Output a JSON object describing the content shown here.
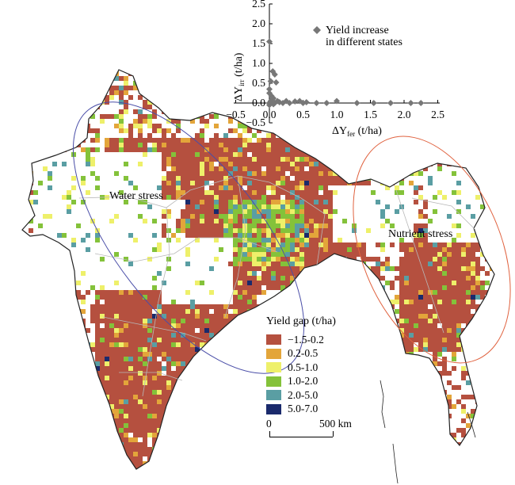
{
  "map": {
    "colors": {
      "gap_1": "#b5503f",
      "gap_2": "#e3a53a",
      "gap_3": "#eef06a",
      "gap_4": "#84c23a",
      "gap_5": "#5a9ea3",
      "gap_6": "#1a2a6c",
      "outline": "#222222",
      "state_lines": "#b8b8b8",
      "water_ellipse": "#4a4ea8",
      "nutrient_ellipse": "#e0623f"
    },
    "regions": {
      "water_stress": "Water stress",
      "nutrient_stress": "Nutrient stress"
    }
  },
  "legend": {
    "title": "Yield gap (t/ha)",
    "items": [
      {
        "label": "−1.5-0.2",
        "color": "#b5503f"
      },
      {
        "label": "0.2-0.5",
        "color": "#e3a53a"
      },
      {
        "label": "0.5-1.0",
        "color": "#eef06a"
      },
      {
        "label": "1.0-2.0",
        "color": "#84c23a"
      },
      {
        "label": "2.0-5.0",
        "color": "#5a9ea3"
      },
      {
        "label": "5.0-7.0",
        "color": "#1a2a6c"
      }
    ]
  },
  "scale_bar": {
    "start": "0",
    "end": "500 km"
  },
  "chart_data": {
    "type": "scatter",
    "title": "",
    "xlabel": "ΔY",
    "xlabel_sub": "fer",
    "xlabel_unit": " (t/ha)",
    "ylabel": "ΔY",
    "ylabel_sub": "irr",
    "ylabel_unit": " (t/ha)",
    "xlim": [
      -0.5,
      2.5
    ],
    "ylim": [
      -0.5,
      2.5
    ],
    "x_ticks": [
      "−0.5",
      "0.0",
      "0.5",
      "1.0",
      "1.5",
      "2.0",
      "2.5"
    ],
    "y_ticks": [
      "−0.5",
      "0.0",
      "0.5",
      "1.0",
      "1.5",
      "2.0",
      "2.5"
    ],
    "legend": [
      "Yield increase",
      "in different states"
    ],
    "marker": "diamond",
    "marker_color": "#777777",
    "series": [
      {
        "name": "Yield increase in different states",
        "points": [
          [
            0.0,
            1.55
          ],
          [
            0.05,
            0.8
          ],
          [
            0.08,
            0.72
          ],
          [
            0.02,
            0.55
          ],
          [
            0.1,
            0.52
          ],
          [
            0.0,
            0.35
          ],
          [
            0.0,
            0.25
          ],
          [
            0.03,
            0.18
          ],
          [
            0.06,
            0.12
          ],
          [
            0.02,
            0.05
          ],
          [
            0.0,
            0.0
          ],
          [
            0.04,
            0.02
          ],
          [
            0.08,
            0.0
          ],
          [
            0.12,
            0.05
          ],
          [
            0.15,
            0.02
          ],
          [
            0.2,
            0.0
          ],
          [
            0.25,
            0.05
          ],
          [
            0.3,
            0.0
          ],
          [
            0.38,
            0.04
          ],
          [
            0.45,
            0.05
          ],
          [
            0.5,
            0.0
          ],
          [
            0.55,
            0.02
          ],
          [
            0.7,
            0.0
          ],
          [
            0.85,
            0.0
          ],
          [
            1.0,
            0.05
          ],
          [
            1.3,
            0.0
          ],
          [
            1.55,
            0.0
          ],
          [
            1.8,
            0.0
          ],
          [
            2.1,
            0.0
          ],
          [
            2.25,
            0.0
          ],
          [
            0.0,
            -0.05
          ],
          [
            0.06,
            -0.03
          ]
        ]
      }
    ]
  }
}
